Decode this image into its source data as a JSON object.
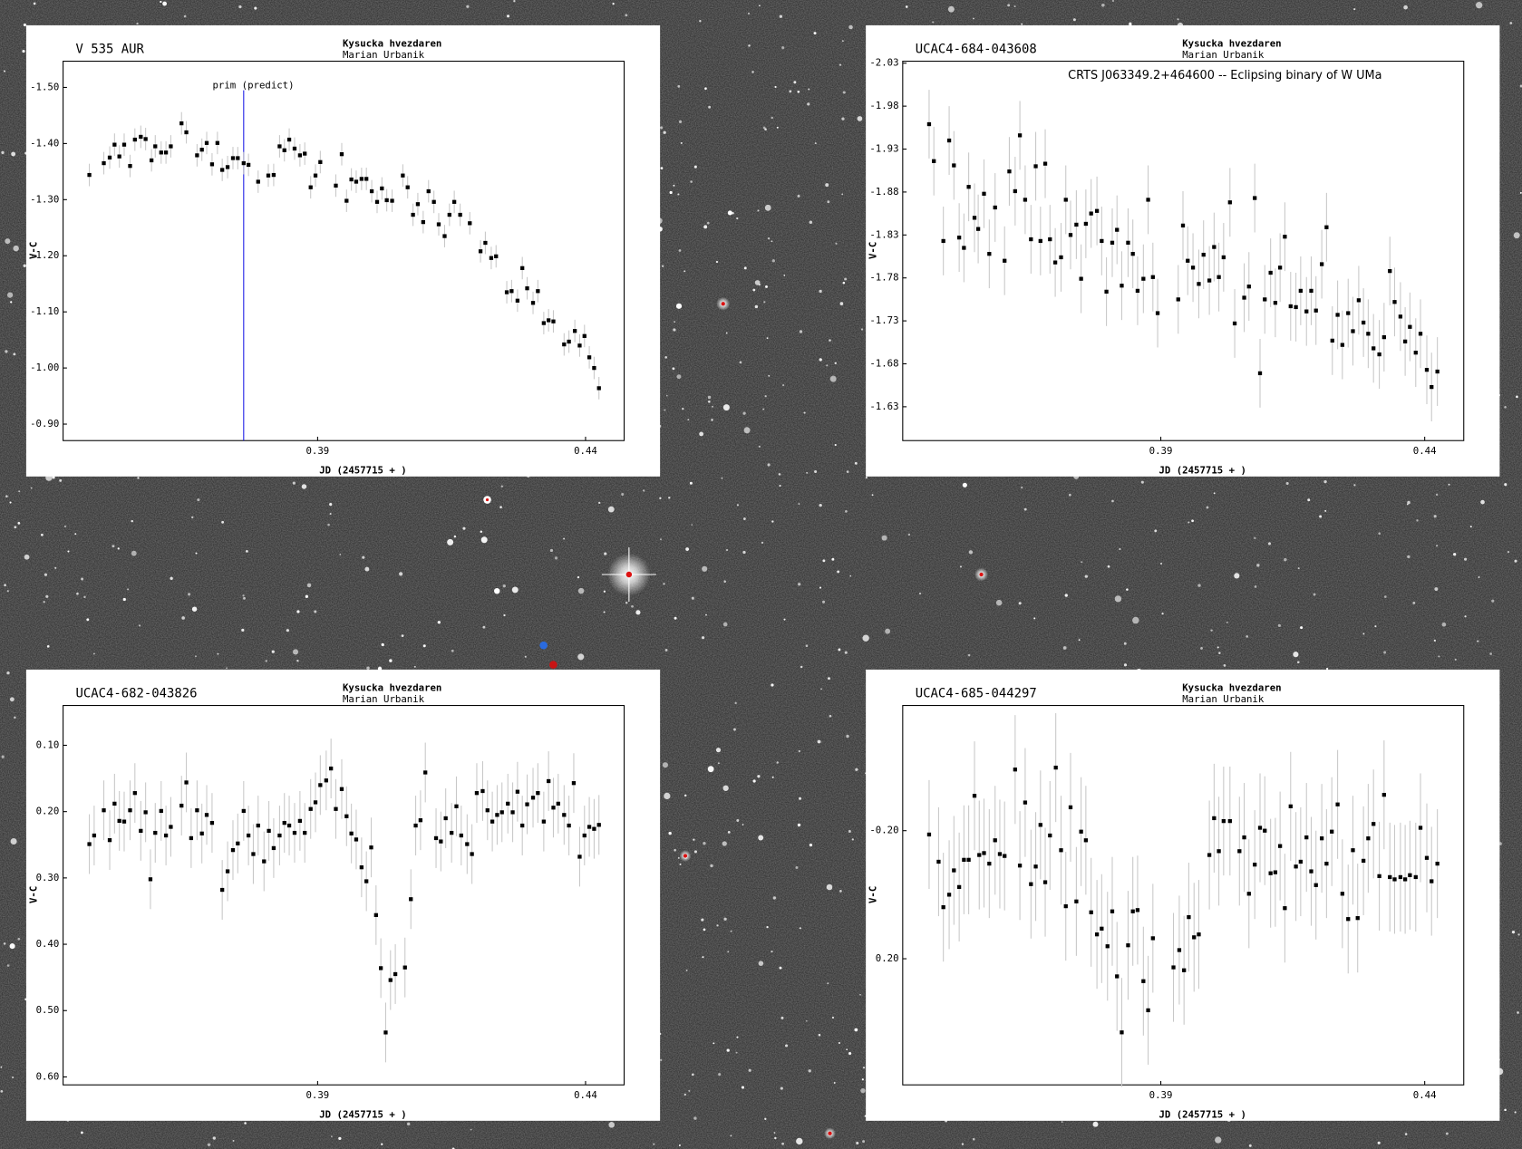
{
  "chart_data": [
    {
      "type": "scatter",
      "title": "V 535 AUR",
      "observatory": "Kysucka hvezdaren",
      "observer": "Marian Urbanik",
      "xlabel": "JD (2457715 + )",
      "ylabel": "V-C",
      "annotation": {
        "text": "prim (predict)",
        "x": 0.3762
      },
      "color": "#000000",
      "error_color": "#c8c8c8",
      "title_color": "#1a1ae6",
      "error": 0.02,
      "xlim": [
        0.3425,
        0.4472
      ],
      "ylim": [
        -1.5467,
        -0.8706
      ],
      "y_inverted": true,
      "xticks": [
        0.39,
        0.44
      ],
      "yticks": [
        {
          "value": -1.5,
          "label": "-1.50"
        },
        {
          "value": -1.4,
          "label": "-1.40"
        },
        {
          "value": -1.3,
          "label": "-1.30"
        },
        {
          "value": -1.2,
          "label": "-1.20"
        },
        {
          "value": -1.1,
          "label": "-1.10"
        },
        {
          "value": -1.0,
          "label": "-1.00"
        },
        {
          "value": -0.9,
          "label": "-0.90"
        }
      ],
      "x": [
        0.3474,
        0.3501,
        0.3512,
        0.3521,
        0.353,
        0.3539,
        0.355,
        0.3559,
        0.357,
        0.3579,
        0.359,
        0.3597,
        0.3608,
        0.3617,
        0.3626,
        0.3646,
        0.3655,
        0.3675,
        0.3684,
        0.3693,
        0.3703,
        0.3713,
        0.3722,
        0.3732,
        0.3742,
        0.3751,
        0.3762,
        0.3771,
        0.3789,
        0.3808,
        0.3818,
        0.3829,
        0.3838,
        0.3847,
        0.3857,
        0.3867,
        0.3876,
        0.3887,
        0.3896,
        0.3905,
        0.3934,
        0.3945,
        0.3954,
        0.3963,
        0.3972,
        0.3982,
        0.3991,
        0.4001,
        0.4011,
        0.402,
        0.4029,
        0.4039,
        0.4059,
        0.4068,
        0.4078,
        0.4087,
        0.4097,
        0.4107,
        0.4117,
        0.4126,
        0.4137,
        0.4146,
        0.4155,
        0.4166,
        0.4184,
        0.4204,
        0.4213,
        0.4224,
        0.4233,
        0.4253,
        0.4262,
        0.4273,
        0.4282,
        0.4291,
        0.4302,
        0.4311,
        0.4322,
        0.4331,
        0.434,
        0.436,
        0.4369,
        0.438,
        0.4389,
        0.4398,
        0.4407,
        0.4416,
        0.4425
      ],
      "values": [
        -1.344,
        -1.365,
        -1.375,
        -1.398,
        -1.377,
        -1.398,
        -1.36,
        -1.407,
        -1.412,
        -1.408,
        -1.37,
        -1.395,
        -1.384,
        -1.384,
        -1.395,
        -1.436,
        -1.42,
        -1.379,
        -1.389,
        -1.401,
        -1.363,
        -1.401,
        -1.353,
        -1.358,
        -1.374,
        -1.374,
        -1.365,
        -1.362,
        -1.332,
        -1.343,
        -1.344,
        -1.395,
        -1.388,
        -1.407,
        -1.391,
        -1.379,
        -1.382,
        -1.322,
        -1.343,
        -1.367,
        -1.325,
        -1.381,
        -1.298,
        -1.336,
        -1.332,
        -1.337,
        -1.337,
        -1.315,
        -1.296,
        -1.32,
        -1.299,
        -1.298,
        -1.343,
        -1.322,
        -1.273,
        -1.292,
        -1.26,
        -1.315,
        -1.296,
        -1.256,
        -1.235,
        -1.273,
        -1.296,
        -1.273,
        -1.258,
        -1.208,
        -1.223,
        -1.196,
        -1.199,
        -1.135,
        -1.137,
        -1.12,
        -1.178,
        -1.142,
        -1.116,
        -1.137,
        -1.08,
        -1.085,
        -1.083,
        -1.042,
        -1.047,
        -1.066,
        -1.04,
        -1.057,
        -1.019,
        -1.0,
        -0.964
      ]
    },
    {
      "type": "scatter",
      "title": "UCAC4-684-043608",
      "subtitle": "CRTS J063349.2+464600 -- Eclipsing binary of W UMa",
      "observatory": "Kysucka hvezdaren",
      "observer": "Marian Urbanik",
      "xlabel": "JD (2457715 + )",
      "ylabel": "V-C",
      "color": "#000000",
      "error_color": "#c8c8c8",
      "title_color": "#1a1ae6",
      "error": 0.04,
      "xlim": [
        0.3411,
        0.4474
      ],
      "ylim": [
        -2.0323,
        -1.5906
      ],
      "y_inverted": true,
      "xticks": [
        0.39,
        0.44
      ],
      "yticks": [
        -2.03,
        -1.98,
        -1.93,
        -1.88,
        -1.83,
        -1.78,
        -1.73,
        -1.68,
        -1.63
      ],
      "x": [
        0.3461,
        0.347,
        0.3488,
        0.3499,
        0.3508,
        0.3518,
        0.3527,
        0.3536,
        0.3547,
        0.3554,
        0.3565,
        0.3575,
        0.3586,
        0.3604,
        0.3613,
        0.3624,
        0.3633,
        0.3643,
        0.3654,
        0.3663,
        0.3672,
        0.3681,
        0.369,
        0.37,
        0.3711,
        0.372,
        0.3729,
        0.374,
        0.3749,
        0.3758,
        0.3768,
        0.3779,
        0.3788,
        0.3797,
        0.3808,
        0.3817,
        0.3826,
        0.3838,
        0.3847,
        0.3856,
        0.3867,
        0.3876,
        0.3885,
        0.3894,
        0.3933,
        0.3942,
        0.3951,
        0.3961,
        0.3972,
        0.3981,
        0.3992,
        0.4001,
        0.401,
        0.4019,
        0.4031,
        0.404,
        0.4058,
        0.4067,
        0.4078,
        0.4088,
        0.4097,
        0.4108,
        0.4117,
        0.4126,
        0.4135,
        0.4146,
        0.4156,
        0.4165,
        0.4176,
        0.4185,
        0.4194,
        0.4205,
        0.4214,
        0.4225,
        0.4235,
        0.4244,
        0.4255,
        0.4264,
        0.4275,
        0.4284,
        0.4293,
        0.4303,
        0.4314,
        0.4323,
        0.4334,
        0.4343,
        0.4354,
        0.4363,
        0.4372,
        0.4383,
        0.4392,
        0.4404,
        0.4413,
        0.4424
      ],
      "values": [
        -1.959,
        -1.916,
        -1.823,
        -1.94,
        -1.911,
        -1.827,
        -1.815,
        -1.886,
        -1.85,
        -1.837,
        -1.878,
        -1.808,
        -1.862,
        -1.8,
        -1.904,
        -1.881,
        -1.946,
        -1.871,
        -1.825,
        -1.91,
        -1.823,
        -1.913,
        -1.825,
        -1.798,
        -1.804,
        -1.871,
        -1.83,
        -1.842,
        -1.779,
        -1.843,
        -1.855,
        -1.858,
        -1.823,
        -1.764,
        -1.821,
        -1.836,
        -1.771,
        -1.821,
        -1.808,
        -1.765,
        -1.779,
        -1.871,
        -1.781,
        -1.739,
        -1.755,
        -1.841,
        -1.8,
        -1.792,
        -1.773,
        -1.807,
        -1.777,
        -1.816,
        -1.781,
        -1.804,
        -1.868,
        -1.727,
        -1.757,
        -1.77,
        -1.873,
        -1.669,
        -1.755,
        -1.786,
        -1.751,
        -1.792,
        -1.828,
        -1.747,
        -1.746,
        -1.765,
        -1.741,
        -1.765,
        -1.742,
        -1.796,
        -1.839,
        -1.707,
        -1.737,
        -1.702,
        -1.739,
        -1.718,
        -1.754,
        -1.728,
        -1.715,
        -1.698,
        -1.691,
        -1.711,
        -1.788,
        -1.752,
        -1.735,
        -1.706,
        -1.723,
        -1.693,
        -1.715,
        -1.673,
        -1.653,
        -1.671
      ]
    },
    {
      "type": "scatter",
      "title": "UCAC4-682-043826",
      "observatory": "Kysucka hvezdaren",
      "observer": "Marian Urbanik",
      "xlabel": "JD (2457715 + )",
      "ylabel": "V-C",
      "color": "#000000",
      "error_color": "#c8c8c8",
      "title_color": "#1a1ae6",
      "error": 0.045,
      "xlim": [
        0.3425,
        0.4472
      ],
      "ylim": [
        0.04,
        0.612
      ],
      "y_inverted": true,
      "xticks": [
        0.39,
        0.44
      ],
      "yticks": [
        {
          "value": 0.1,
          "label": "0.10"
        },
        {
          "value": 0.2,
          "label": "0.20"
        },
        {
          "value": 0.3,
          "label": "0.30"
        },
        {
          "value": 0.4,
          "label": "0.40"
        },
        {
          "value": 0.5,
          "label": "0.50"
        },
        {
          "value": 0.6,
          "label": "0.60"
        }
      ],
      "x": [
        0.3474,
        0.3483,
        0.3501,
        0.3512,
        0.3521,
        0.353,
        0.3539,
        0.355,
        0.3559,
        0.357,
        0.3579,
        0.3588,
        0.3597,
        0.3608,
        0.3617,
        0.3626,
        0.3646,
        0.3655,
        0.3664,
        0.3675,
        0.3684,
        0.3693,
        0.3703,
        0.3722,
        0.3732,
        0.3742,
        0.3751,
        0.3762,
        0.3771,
        0.378,
        0.3789,
        0.38,
        0.3809,
        0.3818,
        0.3829,
        0.3838,
        0.3847,
        0.3857,
        0.3867,
        0.3876,
        0.3887,
        0.3896,
        0.3905,
        0.3916,
        0.3925,
        0.3934,
        0.3945,
        0.3954,
        0.3963,
        0.3972,
        0.3982,
        0.3991,
        0.4,
        0.4009,
        0.4018,
        0.4027,
        0.4036,
        0.4045,
        0.4063,
        0.4074,
        0.4083,
        0.4092,
        0.4101,
        0.4121,
        0.413,
        0.4139,
        0.415,
        0.4159,
        0.4168,
        0.4179,
        0.4188,
        0.4197,
        0.4208,
        0.4217,
        0.4226,
        0.4235,
        0.4244,
        0.4255,
        0.4264,
        0.4273,
        0.4282,
        0.4291,
        0.4302,
        0.4311,
        0.4322,
        0.4331,
        0.434,
        0.4349,
        0.436,
        0.4369,
        0.4378,
        0.4389,
        0.4398,
        0.4407,
        0.4416,
        0.4425
      ],
      "values": [
        0.249,
        0.236,
        0.198,
        0.243,
        0.188,
        0.214,
        0.215,
        0.198,
        0.172,
        0.229,
        0.201,
        0.302,
        0.232,
        0.199,
        0.236,
        0.223,
        0.191,
        0.156,
        0.24,
        0.198,
        0.233,
        0.205,
        0.217,
        0.318,
        0.29,
        0.258,
        0.248,
        0.199,
        0.236,
        0.264,
        0.221,
        0.275,
        0.229,
        0.255,
        0.236,
        0.217,
        0.221,
        0.232,
        0.214,
        0.232,
        0.196,
        0.186,
        0.16,
        0.153,
        0.135,
        0.196,
        0.166,
        0.207,
        0.233,
        0.242,
        0.284,
        0.305,
        0.254,
        0.356,
        0.436,
        0.533,
        0.454,
        0.445,
        0.435,
        0.332,
        0.221,
        0.213,
        0.141,
        0.24,
        0.245,
        0.21,
        0.232,
        0.192,
        0.236,
        0.249,
        0.264,
        0.172,
        0.169,
        0.198,
        0.215,
        0.205,
        0.201,
        0.188,
        0.201,
        0.17,
        0.221,
        0.189,
        0.179,
        0.172,
        0.215,
        0.154,
        0.194,
        0.188,
        0.205,
        0.221,
        0.157,
        0.268,
        0.236,
        0.223,
        0.226,
        0.22
      ]
    },
    {
      "type": "scatter",
      "title": "UCAC4-685-044297",
      "observatory": "Kysucka hvezdaren",
      "observer": "Marian Urbanik",
      "xlabel": "JD (2457715 + )",
      "ylabel": "V-C",
      "color": "#000000",
      "error_color": "#c8c8c8",
      "title_color": "#1a1ae6",
      "error": 0.17,
      "xlim": [
        0.3411,
        0.4474
      ],
      "ylim": [
        -0.591,
        0.594
      ],
      "y_inverted": true,
      "xticks": [
        0.39,
        0.44
      ],
      "yticks": [
        {
          "value": -0.2,
          "label": "-0.20"
        },
        {
          "value": 0.2,
          "label": "0.20"
        }
      ],
      "x": [
        0.3461,
        0.3479,
        0.3488,
        0.3499,
        0.3508,
        0.3518,
        0.3527,
        0.3536,
        0.3547,
        0.3556,
        0.3565,
        0.3575,
        0.3586,
        0.3595,
        0.3604,
        0.3624,
        0.3633,
        0.3643,
        0.3654,
        0.3663,
        0.3672,
        0.3681,
        0.369,
        0.3701,
        0.3711,
        0.372,
        0.3729,
        0.374,
        0.3749,
        0.3758,
        0.3768,
        0.3779,
        0.3788,
        0.3799,
        0.3808,
        0.3817,
        0.3826,
        0.3838,
        0.3847,
        0.3856,
        0.3867,
        0.3876,
        0.3885,
        0.3924,
        0.3935,
        0.3944,
        0.3953,
        0.3963,
        0.3972,
        0.3992,
        0.4001,
        0.401,
        0.4019,
        0.4031,
        0.4049,
        0.4058,
        0.4067,
        0.4078,
        0.4088,
        0.4097,
        0.4108,
        0.4117,
        0.4126,
        0.4135,
        0.4146,
        0.4156,
        0.4165,
        0.4176,
        0.4185,
        0.4194,
        0.4205,
        0.4214,
        0.4224,
        0.4235,
        0.4244,
        0.4255,
        0.4264,
        0.4273,
        0.4284,
        0.4293,
        0.4303,
        0.4314,
        0.4323,
        0.4334,
        0.4343,
        0.4354,
        0.4363,
        0.4372,
        0.4383,
        0.4392,
        0.4404,
        0.4413,
        0.4424
      ],
      "values": [
        -0.188,
        -0.103,
        0.039,
        0.0,
        -0.076,
        -0.024,
        -0.109,
        -0.109,
        -0.309,
        -0.124,
        -0.13,
        -0.097,
        -0.17,
        -0.127,
        -0.121,
        -0.391,
        -0.091,
        -0.288,
        -0.033,
        -0.088,
        -0.218,
        -0.039,
        -0.185,
        -0.397,
        -0.139,
        0.036,
        -0.273,
        0.021,
        -0.197,
        -0.17,
        0.055,
        0.124,
        0.106,
        0.161,
        0.052,
        0.255,
        0.43,
        0.158,
        0.052,
        0.048,
        0.27,
        0.361,
        0.136,
        0.227,
        0.173,
        0.236,
        0.07,
        0.133,
        0.124,
        -0.124,
        -0.239,
        -0.136,
        -0.23,
        -0.23,
        -0.136,
        -0.179,
        -0.003,
        -0.094,
        -0.209,
        -0.2,
        -0.067,
        -0.07,
        -0.152,
        0.042,
        -0.276,
        -0.088,
        -0.103,
        -0.179,
        -0.073,
        -0.03,
        -0.176,
        -0.097,
        -0.197,
        -0.282,
        -0.003,
        0.076,
        -0.139,
        0.073,
        -0.106,
        -0.176,
        -0.221,
        -0.058,
        -0.312,
        -0.055,
        -0.048,
        -0.055,
        -0.048,
        -0.061,
        -0.055,
        -0.209,
        -0.115,
        -0.042,
        -0.097
      ]
    }
  ]
}
